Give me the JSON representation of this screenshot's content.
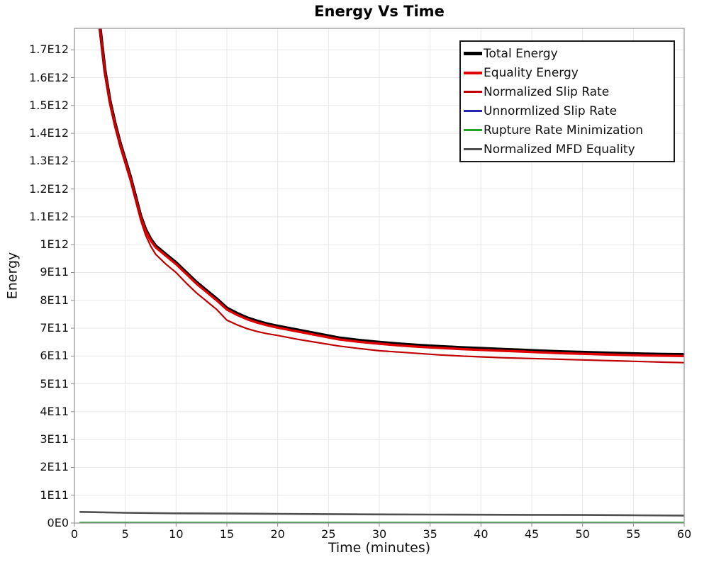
{
  "chart_data": {
    "type": "line",
    "title": "Energy Vs Time",
    "xlabel": "Time (minutes)",
    "ylabel": "Energy",
    "xlim": [
      0,
      60
    ],
    "ylim": [
      0,
      1777000000000.0
    ],
    "grid": true,
    "legend": {
      "position": "top-right-inside",
      "border": true
    },
    "x_ticks": [
      {
        "v": 0,
        "label": "0"
      },
      {
        "v": 5,
        "label": "5"
      },
      {
        "v": 10,
        "label": "10"
      },
      {
        "v": 15,
        "label": "15"
      },
      {
        "v": 20,
        "label": "20"
      },
      {
        "v": 25,
        "label": "25"
      },
      {
        "v": 30,
        "label": "30"
      },
      {
        "v": 35,
        "label": "35"
      },
      {
        "v": 40,
        "label": "40"
      },
      {
        "v": 45,
        "label": "45"
      },
      {
        "v": 50,
        "label": "50"
      },
      {
        "v": 55,
        "label": "55"
      },
      {
        "v": 60,
        "label": "60"
      }
    ],
    "y_ticks": [
      {
        "v": 0,
        "label": "0E0"
      },
      {
        "v": 100000000000.0,
        "label": "1E11"
      },
      {
        "v": 200000000000.0,
        "label": "2E11"
      },
      {
        "v": 300000000000.0,
        "label": "3E11"
      },
      {
        "v": 400000000000.0,
        "label": "4E11"
      },
      {
        "v": 500000000000.0,
        "label": "5E11"
      },
      {
        "v": 600000000000.0,
        "label": "6E11"
      },
      {
        "v": 700000000000.0,
        "label": "7E11"
      },
      {
        "v": 800000000000.0,
        "label": "8E11"
      },
      {
        "v": 900000000000.0,
        "label": "9E11"
      },
      {
        "v": 1000000000000.0,
        "label": "1E12"
      },
      {
        "v": 1100000000000.0,
        "label": "1.1E12"
      },
      {
        "v": 1200000000000.0,
        "label": "1.2E12"
      },
      {
        "v": 1300000000000.0,
        "label": "1.3E12"
      },
      {
        "v": 1400000000000.0,
        "label": "1.4E12"
      },
      {
        "v": 1500000000000.0,
        "label": "1.5E12"
      },
      {
        "v": 1600000000000.0,
        "label": "1.6E12"
      },
      {
        "v": 1700000000000.0,
        "label": "1.7E12"
      }
    ],
    "series": [
      {
        "name": "Total Energy",
        "color": "#000000",
        "width": 4.6,
        "swatch_height": 5,
        "points": [
          [
            2.2,
            1955000000000.0
          ],
          [
            2.5,
            1785000000000.0
          ],
          [
            3,
            1625000000000.0
          ],
          [
            3.5,
            1515000000000.0
          ],
          [
            4,
            1435000000000.0
          ],
          [
            4.5,
            1365000000000.0
          ],
          [
            5,
            1305000000000.0
          ],
          [
            5.5,
            1245000000000.0
          ],
          [
            6,
            1175000000000.0
          ],
          [
            6.5,
            1105000000000.0
          ],
          [
            7,
            1055000000000.0
          ],
          [
            7.5,
            1020000000000.0
          ],
          [
            8,
            995000000000.0
          ],
          [
            9,
            965000000000.0
          ],
          [
            10,
            935000000000.0
          ],
          [
            11,
            900000000000.0
          ],
          [
            12,
            865000000000.0
          ],
          [
            13,
            835000000000.0
          ],
          [
            14,
            805000000000.0
          ],
          [
            15,
            772000000000.0
          ],
          [
            16,
            753000000000.0
          ],
          [
            17,
            737000000000.0
          ],
          [
            18,
            725000000000.0
          ],
          [
            19,
            715000000000.0
          ],
          [
            20,
            707000000000.0
          ],
          [
            22,
            693000000000.0
          ],
          [
            24,
            679000000000.0
          ],
          [
            26,
            665000000000.0
          ],
          [
            28,
            656000000000.0
          ],
          [
            30,
            649000000000.0
          ],
          [
            32,
            643000000000.0
          ],
          [
            34,
            638000000000.0
          ],
          [
            36,
            634000000000.0
          ],
          [
            38,
            630000000000.0
          ],
          [
            40,
            627000000000.0
          ],
          [
            42,
            624000000000.0
          ],
          [
            44,
            621000000000.0
          ],
          [
            46,
            618000000000.0
          ],
          [
            48,
            615000000000.0
          ],
          [
            50,
            613000000000.0
          ],
          [
            52,
            611000000000.0
          ],
          [
            54,
            609000000000.0
          ],
          [
            56,
            607000000000.0
          ],
          [
            58,
            606000000000.0
          ],
          [
            60,
            605000000000.0
          ]
        ]
      },
      {
        "name": "Equality Energy",
        "color": "#e00000",
        "width": 3.4,
        "swatch_height": 4,
        "points": [
          [
            2.2,
            1950000000000.0
          ],
          [
            2.5,
            1780000000000.0
          ],
          [
            3,
            1620000000000.0
          ],
          [
            3.5,
            1510000000000.0
          ],
          [
            4,
            1430000000000.0
          ],
          [
            4.5,
            1360000000000.0
          ],
          [
            5,
            1300000000000.0
          ],
          [
            5.5,
            1240000000000.0
          ],
          [
            6,
            1170000000000.0
          ],
          [
            6.5,
            1100000000000.0
          ],
          [
            7,
            1050000000000.0
          ],
          [
            7.5,
            1015000000000.0
          ],
          [
            8,
            990000000000.0
          ],
          [
            9,
            960000000000.0
          ],
          [
            10,
            930000000000.0
          ],
          [
            11,
            895000000000.0
          ],
          [
            12,
            860000000000.0
          ],
          [
            13,
            830000000000.0
          ],
          [
            14,
            800000000000.0
          ],
          [
            15,
            767000000000.0
          ],
          [
            16,
            748000000000.0
          ],
          [
            17,
            732000000000.0
          ],
          [
            18,
            720000000000.0
          ],
          [
            19,
            710000000000.0
          ],
          [
            20,
            702000000000.0
          ],
          [
            22,
            688000000000.0
          ],
          [
            24,
            674000000000.0
          ],
          [
            26,
            660000000000.0
          ],
          [
            28,
            651000000000.0
          ],
          [
            30,
            644000000000.0
          ],
          [
            32,
            638000000000.0
          ],
          [
            34,
            633000000000.0
          ],
          [
            36,
            629000000000.0
          ],
          [
            38,
            625000000000.0
          ],
          [
            40,
            622000000000.0
          ],
          [
            42,
            619000000000.0
          ],
          [
            44,
            616000000000.0
          ],
          [
            46,
            613000000000.0
          ],
          [
            48,
            610000000000.0
          ],
          [
            50,
            608000000000.0
          ],
          [
            52,
            606000000000.0
          ],
          [
            54,
            604000000000.0
          ],
          [
            56,
            602000000000.0
          ],
          [
            58,
            601000000000.0
          ],
          [
            60,
            600000000000.0
          ]
        ]
      },
      {
        "name": "Normalized Slip Rate",
        "color": "#c00000",
        "width": 2.2,
        "swatch_height": 2.5,
        "points": [
          [
            2.2,
            1940000000000.0
          ],
          [
            2.5,
            1770000000000.0
          ],
          [
            3,
            1610000000000.0
          ],
          [
            3.5,
            1500000000000.0
          ],
          [
            4,
            1420000000000.0
          ],
          [
            4.5,
            1350000000000.0
          ],
          [
            5,
            1290000000000.0
          ],
          [
            5.5,
            1230000000000.0
          ],
          [
            6,
            1160000000000.0
          ],
          [
            6.5,
            1090000000000.0
          ],
          [
            7,
            1035000000000.0
          ],
          [
            7.5,
            995000000000.0
          ],
          [
            8,
            965000000000.0
          ],
          [
            9,
            930000000000.0
          ],
          [
            10,
            900000000000.0
          ],
          [
            11,
            862000000000.0
          ],
          [
            12,
            827000000000.0
          ],
          [
            13,
            797000000000.0
          ],
          [
            14,
            767000000000.0
          ],
          [
            15,
            729000000000.0
          ],
          [
            16,
            712000000000.0
          ],
          [
            17,
            698000000000.0
          ],
          [
            18,
            688000000000.0
          ],
          [
            19,
            680000000000.0
          ],
          [
            20,
            674000000000.0
          ],
          [
            22,
            660000000000.0
          ],
          [
            24,
            648000000000.0
          ],
          [
            26,
            636000000000.0
          ],
          [
            28,
            627000000000.0
          ],
          [
            30,
            619000000000.0
          ],
          [
            32,
            614000000000.0
          ],
          [
            34,
            609000000000.0
          ],
          [
            36,
            604000000000.0
          ],
          [
            38,
            600000000000.0
          ],
          [
            40,
            597000000000.0
          ],
          [
            42,
            594000000000.0
          ],
          [
            44,
            592000000000.0
          ],
          [
            46,
            590000000000.0
          ],
          [
            48,
            588000000000.0
          ],
          [
            50,
            586000000000.0
          ],
          [
            52,
            584000000000.0
          ],
          [
            54,
            582000000000.0
          ],
          [
            56,
            580000000000.0
          ],
          [
            58,
            578000000000.0
          ],
          [
            60,
            576000000000.0
          ]
        ]
      },
      {
        "name": "Unnormlized Slip Rate",
        "color": "#2424b0",
        "width": 2,
        "swatch_height": 2.5,
        "points": [
          [
            0.5,
            1500000000.0
          ],
          [
            10,
            1500000000.0
          ],
          [
            20,
            1500000000.0
          ],
          [
            30,
            1500000000.0
          ],
          [
            40,
            1500000000.0
          ],
          [
            50,
            1500000000.0
          ],
          [
            60,
            1500000000.0
          ]
        ]
      },
      {
        "name": "Rupture Rate Minimization",
        "color": "#23a32a",
        "width": 2.2,
        "swatch_height": 2.5,
        "points": [
          [
            0.5,
            2000000000.0
          ],
          [
            10,
            2000000000.0
          ],
          [
            20,
            2000000000.0
          ],
          [
            30,
            2000000000.0
          ],
          [
            40,
            2000000000.0
          ],
          [
            50,
            2000000000.0
          ],
          [
            60,
            2000000000.0
          ]
        ]
      },
      {
        "name": "Normalized MFD Equality",
        "color": "#4f4f4f",
        "width": 2.6,
        "swatch_height": 2.5,
        "points": [
          [
            0.5,
            40000000000.0
          ],
          [
            2,
            39000000000.0
          ],
          [
            5,
            37000000000.0
          ],
          [
            10,
            35000000000.0
          ],
          [
            15,
            34000000000.0
          ],
          [
            20,
            33000000000.0
          ],
          [
            25,
            32000000000.0
          ],
          [
            30,
            31000000000.0
          ],
          [
            35,
            30500000000.0
          ],
          [
            40,
            30000000000.0
          ],
          [
            45,
            29500000000.0
          ],
          [
            50,
            29000000000.0
          ],
          [
            55,
            28000000000.0
          ],
          [
            60,
            27000000000.0
          ]
        ]
      }
    ]
  }
}
